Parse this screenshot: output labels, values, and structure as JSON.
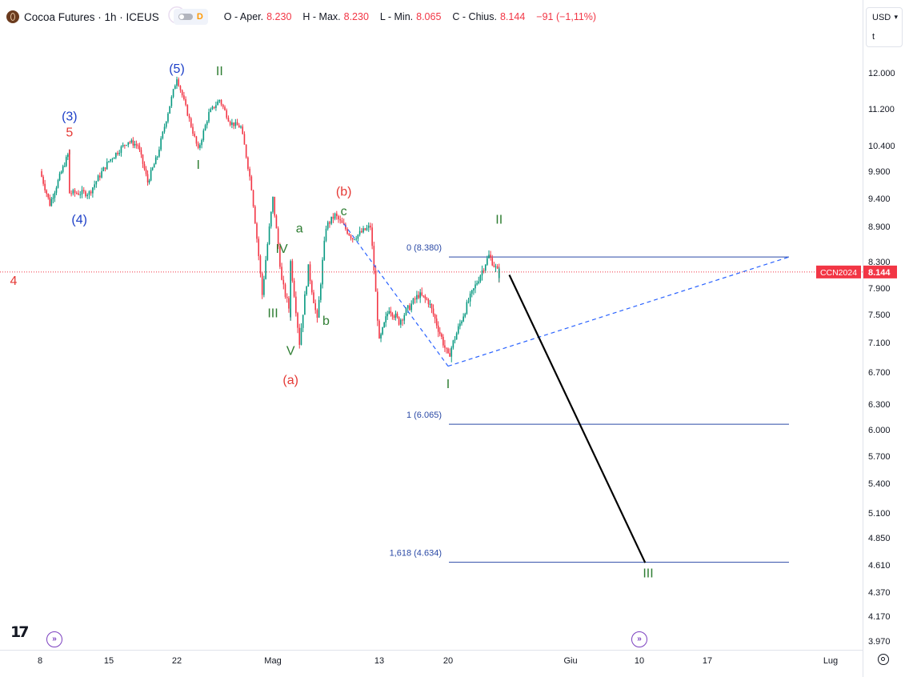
{
  "header": {
    "symbol": "Cocoa Futures · 1h · ICEUS",
    "badge": "D",
    "ohlc": [
      {
        "key": "O - Aper.",
        "value": "8.230"
      },
      {
        "key": "H - Max.",
        "value": "8.230"
      },
      {
        "key": "L - Min.",
        "value": "8.065"
      },
      {
        "key": "C - Chius.",
        "value": "8.144"
      },
      {
        "key": "",
        "value": "−91 (−1,11%)"
      }
    ]
  },
  "currency_selector": {
    "currency": "USD",
    "unit": "t"
  },
  "tv_logo": "17",
  "colors": {
    "up": "#089981",
    "down": "#f23645",
    "wave_green": "#2e7d32",
    "wave_blue": "#1e40c8",
    "wave_red": "#e53935",
    "purple": "#6a1b9a",
    "fib_line": "#2b4aa6",
    "price_badge": "#f23645",
    "background": "#ffffff"
  },
  "chart_data": {
    "type": "candlestick",
    "symbol": "CCN2024",
    "last_price": "8.144",
    "y_axis_ticks": [
      "12.000",
      "11.200",
      "10.400",
      "9.900",
      "9.400",
      "8.900",
      "8.300",
      "7.900",
      "7.500",
      "7.100",
      "6.700",
      "6.300",
      "6.000",
      "5.700",
      "5.400",
      "5.100",
      "4.850",
      "4.610",
      "4.370",
      "4.170",
      "3.970"
    ],
    "x_axis_ticks": [
      "8",
      "15",
      "22",
      "Mag",
      "13",
      "20",
      "Giu",
      "10",
      "17",
      "Lug"
    ],
    "price_path": [
      [
        "Apr 8",
        9.9
      ],
      [
        "Apr 9",
        9.3
      ],
      [
        "Apr 10",
        9.8
      ],
      [
        "Apr 11",
        10.3
      ],
      [
        "Apr 11",
        9.5
      ],
      [
        "Apr 13",
        9.5
      ],
      [
        "Apr 15",
        10.1
      ],
      [
        "Apr 17",
        10.5
      ],
      [
        "Apr 18",
        10.4
      ],
      [
        "Apr 19",
        9.7
      ],
      [
        "Apr 20",
        10.2
      ],
      [
        "Apr 22",
        11.9
      ],
      [
        "Apr 23",
        11.1
      ],
      [
        "Apr 24",
        10.3
      ],
      [
        "Apr 25",
        11.1
      ],
      [
        "Apr 26",
        11.4
      ],
      [
        "Apr 27",
        10.9
      ],
      [
        "Apr 28",
        10.8
      ],
      [
        "Apr 29",
        9.6
      ],
      [
        "Apr 30",
        7.8
      ],
      [
        "May 1",
        9.4
      ],
      [
        "May 2",
        8.0
      ],
      [
        "May 3",
        7.5
      ],
      [
        "May 3",
        8.3
      ],
      [
        "May 4",
        7.1
      ],
      [
        "May 5",
        8.2
      ],
      [
        "May 6",
        7.4
      ],
      [
        "May 7",
        8.9
      ],
      [
        "May 8",
        9.1
      ],
      [
        "May 10",
        8.7
      ],
      [
        "May 12",
        8.9
      ],
      [
        "May 13",
        7.1
      ],
      [
        "May 14",
        7.6
      ],
      [
        "May 15",
        7.4
      ],
      [
        "May 17",
        7.8
      ],
      [
        "May 18",
        7.7
      ],
      [
        "May 19",
        7.3
      ],
      [
        "May 20",
        6.9
      ],
      [
        "May 21",
        7.3
      ],
      [
        "May 22",
        7.7
      ],
      [
        "May 24",
        8.4
      ],
      [
        "May 25",
        8.1
      ],
      [
        "May 25",
        8.15
      ]
    ],
    "wave_labels": [
      {
        "text": "4",
        "group": "red"
      },
      {
        "text": "(3)",
        "group": "blue"
      },
      {
        "text": "5",
        "group": "red"
      },
      {
        "text": "(4)",
        "group": "blue"
      },
      {
        "text": "5",
        "group": "purple-circled"
      },
      {
        "text": "(5)",
        "group": "blue"
      },
      {
        "text": "II",
        "group": "green"
      },
      {
        "text": "I",
        "group": "green"
      },
      {
        "text": "(b)",
        "group": "red"
      },
      {
        "text": "c",
        "group": "green"
      },
      {
        "text": "a",
        "group": "green"
      },
      {
        "text": "IV",
        "group": "green"
      },
      {
        "text": "III",
        "group": "green"
      },
      {
        "text": "b",
        "group": "green"
      },
      {
        "text": "V",
        "group": "green"
      },
      {
        "text": "(a)",
        "group": "red"
      },
      {
        "text": "II",
        "group": "green"
      },
      {
        "text": "I",
        "group": "green"
      },
      {
        "text": "III",
        "group": "green"
      }
    ],
    "fib_levels": [
      {
        "label": "0 (8.380)",
        "price": 8.38
      },
      {
        "label": "1 (6.065)",
        "price": 6.065
      },
      {
        "label": "1,618 (4.634)",
        "price": 4.634
      }
    ],
    "projection": {
      "target_label": "III",
      "target_price": 4.63
    },
    "current_price_line": 8.144
  }
}
